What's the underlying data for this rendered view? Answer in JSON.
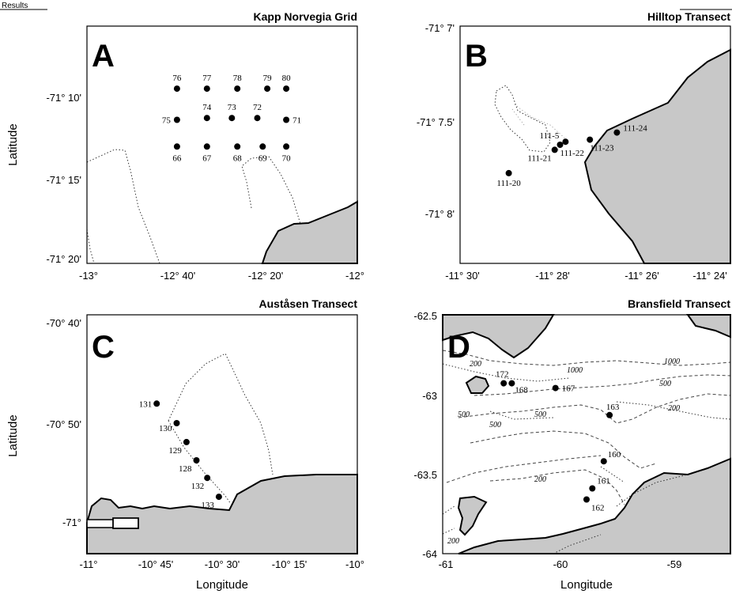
{
  "header": {
    "left_fragment": "Results"
  },
  "axis_labels": {
    "latitude": "Latitude",
    "longitude": "Longitude"
  },
  "colors": {
    "land": "#c8c8c8",
    "outline": "#000000"
  },
  "panels": {
    "A": {
      "letter": "A",
      "title": "Kapp Norvegia Grid",
      "yticks": [
        "-71° 10'",
        "-71° 15'",
        "-71° 20'"
      ],
      "xticks": [
        "-13°",
        "-12° 40'",
        "-12° 20'",
        "-12°"
      ],
      "stations": [
        {
          "id": "76",
          "lon": -12.667,
          "lat": -71.137
        },
        {
          "id": "77",
          "lon": -12.556,
          "lat": -71.137
        },
        {
          "id": "78",
          "lon": -12.444,
          "lat": -71.137
        },
        {
          "id": "79",
          "lon": -12.333,
          "lat": -71.137
        },
        {
          "id": "80",
          "lon": -12.263,
          "lat": -71.137
        },
        {
          "id": "75",
          "lon": -12.667,
          "lat": -71.172
        },
        {
          "id": "74",
          "lon": -12.556,
          "lat": -71.17
        },
        {
          "id": "73",
          "lon": -12.464,
          "lat": -71.17
        },
        {
          "id": "72",
          "lon": -12.37,
          "lat": -71.17
        },
        {
          "id": "71",
          "lon": -12.263,
          "lat": -71.172
        },
        {
          "id": "66",
          "lon": -12.667,
          "lat": -71.202
        },
        {
          "id": "67",
          "lon": -12.556,
          "lat": -71.202
        },
        {
          "id": "68",
          "lon": -12.444,
          "lat": -71.202
        },
        {
          "id": "69",
          "lon": -12.35,
          "lat": -71.202
        },
        {
          "id": "70",
          "lon": -12.263,
          "lat": -71.202
        }
      ]
    },
    "B": {
      "letter": "B",
      "title": "Hilltop Transect",
      "yticks": [
        "-71° 7'",
        "-71° 7.5'",
        "-71° 8'"
      ],
      "xticks": [
        "-11° 30'",
        "-11° 28'",
        "-11° 26'",
        "-11° 24'"
      ],
      "stations": [
        {
          "id": "111-5",
          "lon": -11.461,
          "lat": -71.1247
        },
        {
          "id": "111-21",
          "lon": -11.465,
          "lat": -71.1255
        },
        {
          "id": "111-22",
          "lon": -11.463,
          "lat": -71.125
        },
        {
          "id": "111-23",
          "lon": -11.452,
          "lat": -71.1245
        },
        {
          "id": "111-24",
          "lon": -11.442,
          "lat": -71.1238
        },
        {
          "id": "111-20",
          "lon": -11.482,
          "lat": -71.1278
        }
      ]
    },
    "C": {
      "letter": "C",
      "title": "Auståsen Transect",
      "yticks": [
        "-70° 40'",
        "-70° 50'",
        "-71°"
      ],
      "xticks": [
        "-11°",
        "-10° 45'",
        "-10° 30'",
        "-10° 15'",
        "-10°"
      ],
      "stations": [
        {
          "id": "131",
          "lon": -10.742,
          "lat": -70.803
        },
        {
          "id": "130",
          "lon": -10.668,
          "lat": -70.833
        },
        {
          "id": "129",
          "lon": -10.632,
          "lat": -70.862
        },
        {
          "id": "128",
          "lon": -10.595,
          "lat": -70.89
        },
        {
          "id": "132",
          "lon": -10.555,
          "lat": -70.917
        },
        {
          "id": "133",
          "lon": -10.512,
          "lat": -70.946
        }
      ]
    },
    "D": {
      "letter": "D",
      "title": "Bransfield Transect",
      "yticks": [
        "-62.5",
        "-63",
        "-63.5",
        "-64"
      ],
      "xticks": [
        "-61",
        "-60",
        "-59"
      ],
      "stations": [
        {
          "id": "172",
          "lon": -60.47,
          "lat": -62.93
        },
        {
          "id": "168",
          "lon": -60.4,
          "lat": -62.93
        },
        {
          "id": "167",
          "lon": -60.02,
          "lat": -62.96
        },
        {
          "id": "163",
          "lon": -59.55,
          "lat": -63.13
        },
        {
          "id": "160",
          "lon": -59.6,
          "lat": -63.42
        },
        {
          "id": "161",
          "lon": -59.7,
          "lat": -63.59
        },
        {
          "id": "162",
          "lon": -59.75,
          "lat": -63.66
        }
      ],
      "contour_labels": [
        "200",
        "1000",
        "1000",
        "500",
        "500",
        "500",
        "200",
        "500",
        "200",
        "200"
      ]
    }
  }
}
